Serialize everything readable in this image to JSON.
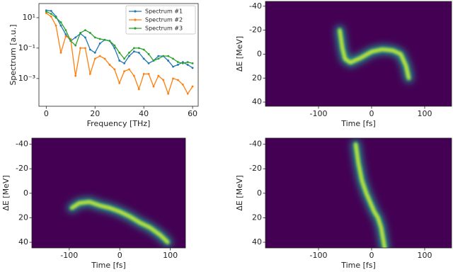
{
  "chart_data": [
    {
      "type": "line",
      "xlabel": "Frequency [THz]",
      "ylabel": "Spectrum [a.u.]",
      "log_y": true,
      "legend": "upper right",
      "x": [
        0,
        2,
        4,
        6,
        8,
        10,
        12,
        14,
        16,
        18,
        20,
        22,
        24,
        26,
        28,
        30,
        32,
        34,
        36,
        38,
        40,
        42,
        44,
        46,
        48,
        50,
        52,
        54,
        56,
        58,
        60
      ],
      "series": [
        {
          "name": "Spectrum #1",
          "color": "#1f77b4",
          "values": [
            30,
            28,
            12,
            3,
            0.8,
            0.3,
            0.5,
            0.9,
            0.5,
            0.08,
            0.05,
            0.2,
            0.35,
            0.3,
            0.1,
            0.015,
            0.01,
            0.03,
            0.06,
            0.05,
            0.02,
            0.01,
            0.015,
            0.03,
            0.03,
            0.015,
            0.006,
            0.008,
            0.012,
            0.008,
            0.005
          ]
        },
        {
          "name": "Spectrum #2",
          "color": "#ff7f0e",
          "values": [
            20,
            12,
            3,
            0.05,
            0.6,
            0.4,
            0.0015,
            0.1,
            0.1,
            0.002,
            0.02,
            0.03,
            0.02,
            0.008,
            0.004,
            0.0005,
            0.003,
            0.004,
            0.0015,
            0.0002,
            0.002,
            0.002,
            0.0003,
            0.0015,
            0.0008,
            0.0001,
            0.001,
            0.0008,
            0.0004,
            0.0001,
            0.0003
          ]
        },
        {
          "name": "Spectrum #3",
          "color": "#2ca02c",
          "values": [
            25,
            18,
            10,
            5,
            1.5,
            0.3,
            0.15,
            1,
            1.5,
            1,
            0.5,
            0.4,
            0.35,
            0.3,
            0.15,
            0.05,
            0.02,
            0.05,
            0.1,
            0.1,
            0.08,
            0.04,
            0.015,
            0.02,
            0.03,
            0.03,
            0.02,
            0.012,
            0.01,
            0.012,
            0.01
          ]
        }
      ],
      "xlim": [
        -3,
        62.3
      ],
      "xticks": [
        0,
        20,
        40,
        60
      ],
      "ylim": [
        1.5e-05,
        85
      ],
      "yticks": [
        {
          "value": 0.001,
          "label": "10⁻³"
        },
        {
          "value": 0.1,
          "label": "10⁻¹"
        },
        {
          "value": 10,
          "label": "10¹"
        }
      ]
    },
    {
      "type": "heatmap",
      "xlabel": "Time [fs]",
      "ylabel": "ΔE [MeV]",
      "x": [
        -60,
        -55,
        -50,
        -40,
        -20,
        0,
        20,
        40,
        55,
        65,
        70
      ],
      "y": [
        -20,
        -5,
        4,
        7,
        3,
        -2,
        -4,
        -3,
        0,
        10,
        20
      ],
      "xlim": [
        -200,
        150.7
      ],
      "xticks": [
        -100,
        0,
        100
      ],
      "ylim": [
        43.5,
        -44
      ],
      "yticks": [
        -40,
        -20,
        0,
        20,
        40
      ]
    },
    {
      "type": "heatmap",
      "xlabel": "Time [fs]",
      "ylabel": "ΔE [MeV]",
      "x": [
        -95,
        -80,
        -60,
        -40,
        -20,
        0,
        20,
        40,
        60,
        80,
        95
      ],
      "y": [
        12,
        8,
        7,
        10,
        12,
        15,
        19,
        24,
        28,
        34,
        40
      ],
      "xlim": [
        -174,
        130
      ],
      "xticks": [
        -100,
        0,
        100
      ],
      "ylim": [
        44.6,
        -45
      ],
      "yticks": [
        -40,
        -20,
        0,
        20,
        40
      ]
    },
    {
      "type": "heatmap",
      "xlabel": "Time [fs]",
      "ylabel": "ΔE [MeV]",
      "x": [
        -30,
        -25,
        -18,
        -10,
        -2,
        5,
        12,
        18,
        22,
        25
      ],
      "y": [
        -40,
        -25,
        -10,
        0,
        8,
        15,
        20,
        28,
        38,
        45
      ],
      "xlim": [
        -200,
        150.7
      ],
      "xticks": [
        -100,
        0,
        100
      ],
      "ylim": [
        44.6,
        -45
      ],
      "yticks": [
        -40,
        -20,
        0,
        20,
        40
      ]
    }
  ]
}
